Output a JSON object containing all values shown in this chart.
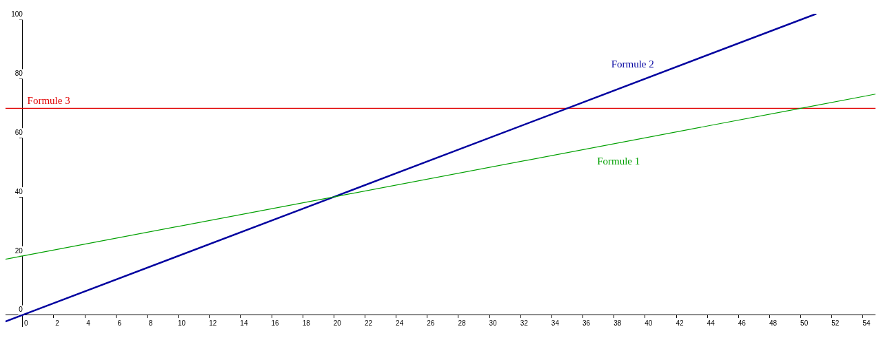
{
  "chart_data": {
    "type": "line",
    "xlim": [
      -1.1,
      54.8
    ],
    "ylim": [
      -3.8,
      102
    ],
    "xticks": [
      0,
      2,
      4,
      6,
      8,
      10,
      12,
      14,
      16,
      18,
      20,
      22,
      24,
      26,
      28,
      30,
      32,
      34,
      36,
      38,
      40,
      42,
      44,
      46,
      48,
      50,
      52,
      54
    ],
    "yticks": [
      0,
      20,
      40,
      60,
      80,
      100
    ],
    "grid": false,
    "marker": "none",
    "legend": false,
    "series": [
      {
        "name": "Formule 1",
        "color": "#00a000",
        "x": [
          -1.1,
          0,
          20,
          50,
          54.8
        ],
        "values": [
          18.9,
          20,
          40,
          70,
          74.8
        ]
      },
      {
        "name": "Formule 2",
        "color": "#00009f",
        "x": [
          -1.1,
          0,
          20,
          35,
          51
        ],
        "values": [
          -2.2,
          0,
          40,
          70,
          102
        ]
      },
      {
        "name": "Formule 3",
        "color": "#e00000",
        "x": [
          -1.1,
          54.8
        ],
        "values": [
          70,
          70
        ]
      }
    ]
  }
}
